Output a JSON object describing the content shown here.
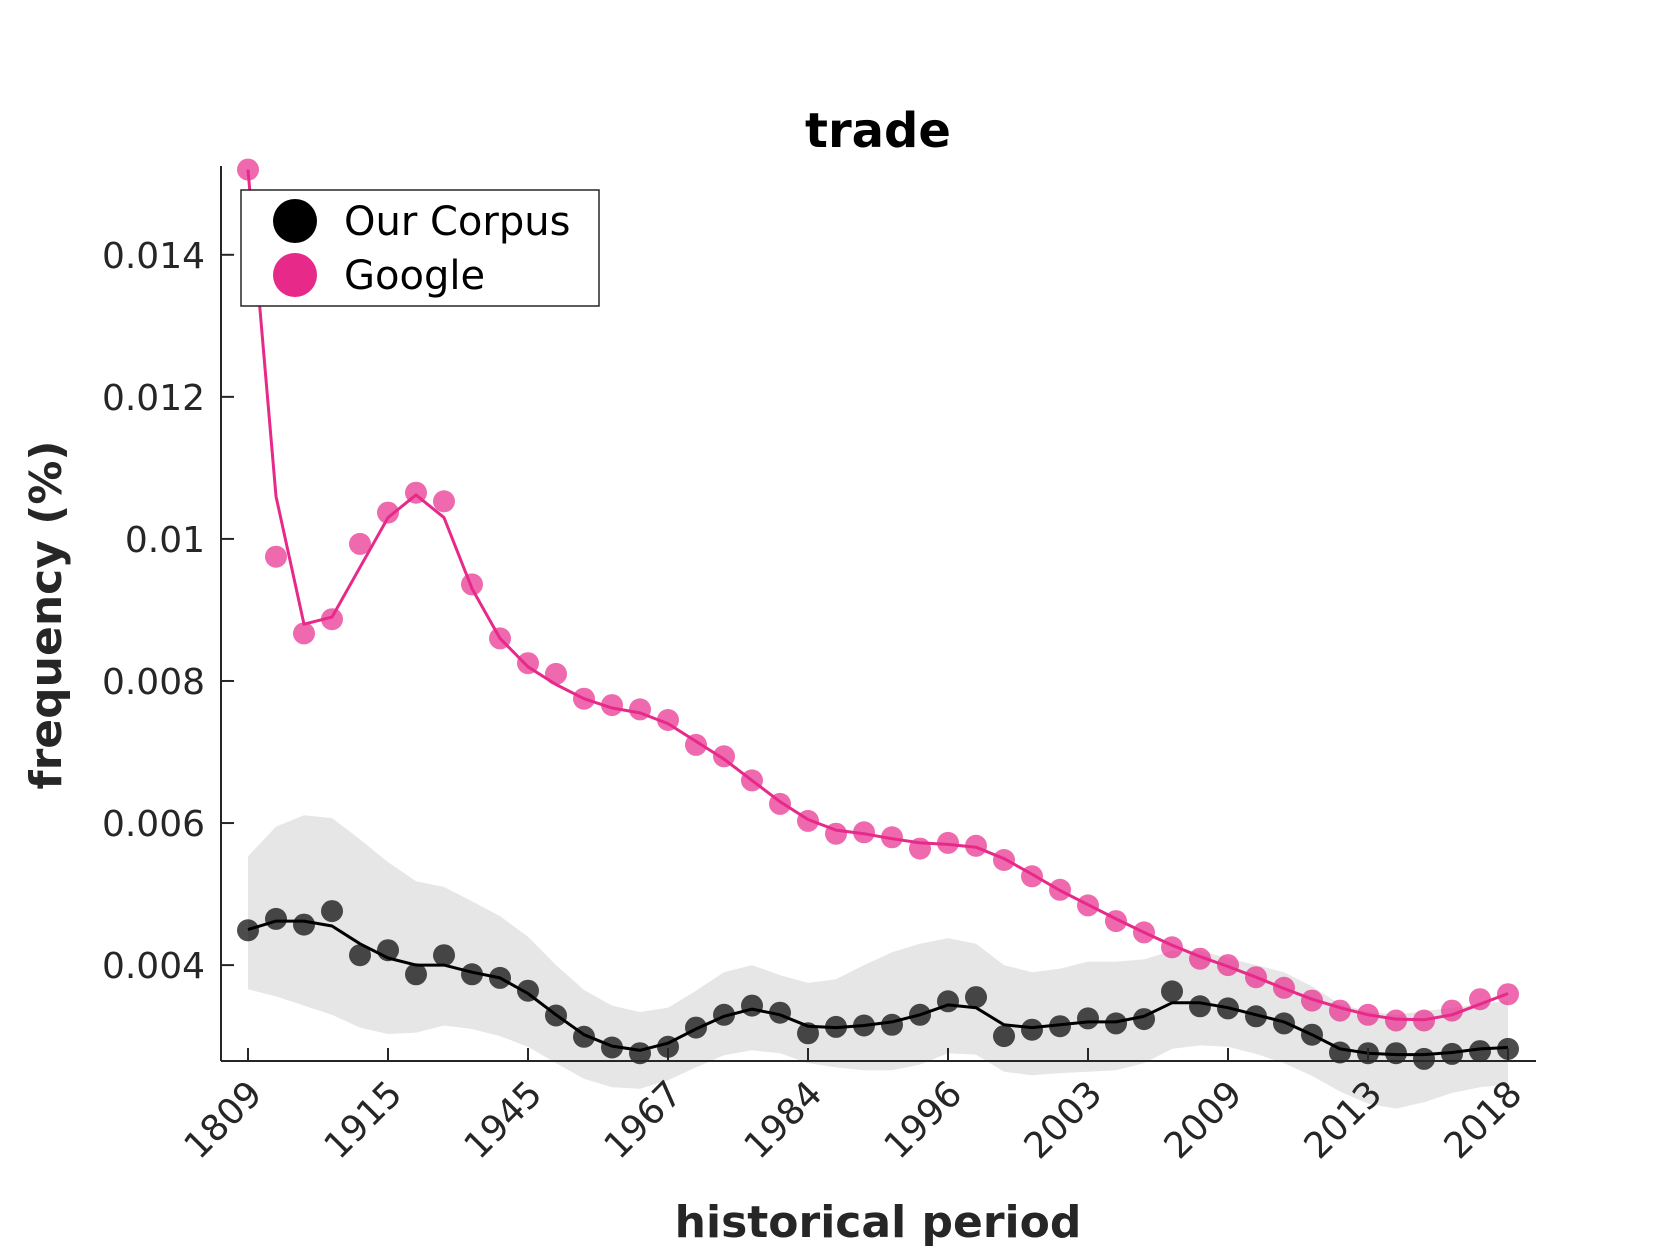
{
  "chart_data": {
    "type": "scatter",
    "title": "trade",
    "xlabel": "historical period",
    "ylabel": "frequency (%)",
    "x_tick_labels": [
      "1809",
      "1915",
      "1945",
      "1967",
      "1984",
      "1996",
      "2003",
      "2009",
      "2013",
      "2018"
    ],
    "y_tick_labels": [
      "0.004",
      "0.006",
      "0.008",
      "0.01",
      "0.012",
      "0.014"
    ],
    "y_ticks": [
      0.004,
      0.006,
      0.008,
      0.01,
      0.012,
      0.014
    ],
    "ylim": [
      0.00265,
      0.01525
    ],
    "n_points": 46,
    "x_tick_positions": [
      1,
      6,
      11,
      16,
      21,
      26,
      31,
      36,
      41,
      46
    ],
    "grid": false,
    "legend_position": "top-left",
    "series": [
      {
        "name": "Our Corpus",
        "color": "#000000",
        "values": [
          0.00449,
          0.00465,
          0.00457,
          0.00476,
          0.00414,
          0.00421,
          0.00387,
          0.00414,
          0.00387,
          0.00382,
          0.00364,
          0.00329,
          0.00299,
          0.00284,
          0.00276,
          0.00285,
          0.00312,
          0.0033,
          0.00343,
          0.00333,
          0.00304,
          0.00313,
          0.00315,
          0.00316,
          0.0033,
          0.00349,
          0.00355,
          0.003,
          0.00309,
          0.00314,
          0.00325,
          0.00318,
          0.00324,
          0.00363,
          0.00342,
          0.00339,
          0.00328,
          0.00318,
          0.00302,
          0.00277,
          0.00276,
          0.00276,
          0.00268,
          0.00275,
          0.00279,
          0.00282
        ],
        "smooth": [
          0.0045,
          0.00462,
          0.00462,
          0.00455,
          0.0043,
          0.0041,
          0.004,
          0.004,
          0.0039,
          0.00382,
          0.0036,
          0.0033,
          0.00302,
          0.00286,
          0.0028,
          0.0029,
          0.0031,
          0.00328,
          0.00338,
          0.0033,
          0.00314,
          0.00312,
          0.00315,
          0.0032,
          0.0033,
          0.00344,
          0.0034,
          0.00316,
          0.00312,
          0.00316,
          0.0032,
          0.0032,
          0.00328,
          0.00347,
          0.00347,
          0.0034,
          0.0033,
          0.0032,
          0.00302,
          0.00282,
          0.00276,
          0.00274,
          0.00274,
          0.00277,
          0.00282,
          0.00284
        ],
        "band_upper": [
          0.00553,
          0.00595,
          0.00611,
          0.00607,
          0.00577,
          0.00545,
          0.00518,
          0.0051,
          0.0049,
          0.00469,
          0.0044,
          0.004,
          0.00365,
          0.00343,
          0.00334,
          0.0034,
          0.00364,
          0.0039,
          0.004,
          0.00386,
          0.00375,
          0.0038,
          0.004,
          0.00418,
          0.0043,
          0.00438,
          0.0043,
          0.004,
          0.0039,
          0.00395,
          0.00405,
          0.00405,
          0.00408,
          0.0042,
          0.0042,
          0.0041,
          0.004,
          0.0039,
          0.0037,
          0.00345,
          0.00335,
          0.0033,
          0.00335,
          0.0034,
          0.00345,
          0.0035
        ],
        "band_lower": [
          0.00366,
          0.00356,
          0.00343,
          0.0033,
          0.00312,
          0.00303,
          0.00305,
          0.00315,
          0.0031,
          0.003,
          0.00285,
          0.00262,
          0.0024,
          0.00228,
          0.00226,
          0.00238,
          0.00256,
          0.00273,
          0.0028,
          0.00276,
          0.00262,
          0.00256,
          0.00252,
          0.00252,
          0.0026,
          0.00276,
          0.00274,
          0.0025,
          0.00245,
          0.00248,
          0.0025,
          0.00252,
          0.00262,
          0.00282,
          0.00287,
          0.00285,
          0.00275,
          0.00262,
          0.00244,
          0.00222,
          0.00205,
          0.00198,
          0.00207,
          0.0022,
          0.00228,
          0.00232
        ]
      },
      {
        "name": "Google",
        "color": "#e7298a",
        "values": [
          0.0152,
          0.00975,
          0.00867,
          0.00887,
          0.00993,
          0.01037,
          0.01065,
          0.01053,
          0.00936,
          0.0086,
          0.00825,
          0.0081,
          0.00775,
          0.00766,
          0.0076,
          0.00745,
          0.0071,
          0.00694,
          0.0066,
          0.00627,
          0.00603,
          0.00585,
          0.00587,
          0.0058,
          0.00564,
          0.00572,
          0.00568,
          0.00548,
          0.00525,
          0.00506,
          0.00484,
          0.00462,
          0.00446,
          0.00425,
          0.00409,
          0.004,
          0.00383,
          0.00368,
          0.0035,
          0.00336,
          0.0033,
          0.00322,
          0.00322,
          0.00336,
          0.00352,
          0.00359
        ],
        "smooth": [
          0.0152,
          0.0106,
          0.0088,
          0.0089,
          0.0096,
          0.0103,
          0.01062,
          0.0103,
          0.0093,
          0.0086,
          0.0082,
          0.00795,
          0.00775,
          0.00762,
          0.00755,
          0.0074,
          0.00715,
          0.0069,
          0.0066,
          0.0063,
          0.00605,
          0.0059,
          0.00585,
          0.00578,
          0.00572,
          0.0057,
          0.00566,
          0.0055,
          0.00528,
          0.00505,
          0.00485,
          0.00465,
          0.00446,
          0.00428,
          0.00412,
          0.00398,
          0.00383,
          0.00367,
          0.00352,
          0.0034,
          0.0033,
          0.00324,
          0.00323,
          0.0033,
          0.00345,
          0.0036
        ]
      }
    ],
    "band_color": "#e6e6e6"
  }
}
